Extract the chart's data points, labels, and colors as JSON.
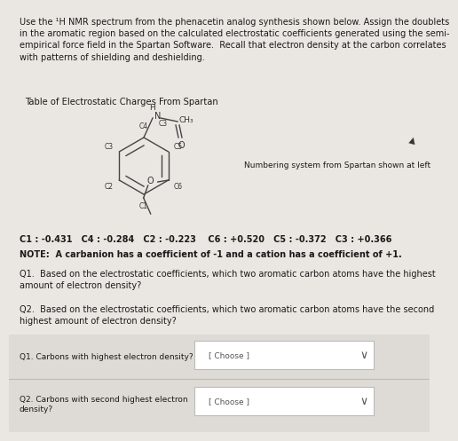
{
  "bg_color": "#eae7e2",
  "text_color": "#1a1a1a",
  "title_text": "Use the ¹H NMR spectrum from the phenacetin analog synthesis shown below. Assign the doublets\nin the aromatic region based on the calculated electrostatic coefficients generated using the semi-\nempirical force field in the Spartan Software.  Recall that electron density at the carbon correlates\nwith patterns of shielding and deshielding.",
  "table_title": "Table of Electrostatic Charges From Spartan",
  "numbering_label": "Numbering system from Spartan shown at left",
  "coefficients_line": "C1 : -0.431   C4 : -0.284   C2 : -0.223    C6 : +0.520   C5 : -0.372   C3 : +0.366",
  "note_line": "NOTE:  A carbanion has a coefficient of -1 and a cation has a coefficient of +1.",
  "q1_text": "Q1.  Based on the electrostatic coefficients, which two aromatic carbon atoms have the highest\namount of electron density?",
  "q2_text": "Q2.  Based on the electrostatic coefficients, which two aromatic carbon atoms have the second\nhighest amount of electron density?",
  "q1_label": "Q1. Carbons with highest electron density?",
  "q2_label": "Q2. Carbons with second highest electron\ndensity?",
  "choose_text": "[ Choose ]",
  "box_bg": "#ffffff",
  "box_border": "#bbbbbb",
  "section_bg": "#dedad5",
  "divider_color": "#c0bbb5"
}
